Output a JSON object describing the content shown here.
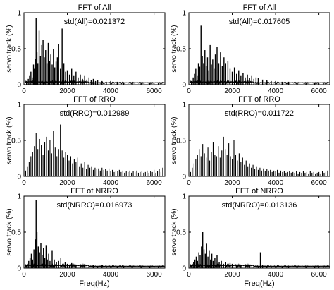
{
  "chart_data": [
    {
      "type": "bar",
      "panel": "top-left",
      "title": "FFT of All",
      "annotation": "std(All)=0.021372",
      "xlabel": "",
      "ylabel": "servo track (%)",
      "xlim": [
        0,
        6500
      ],
      "ylim": [
        0,
        1
      ],
      "xticks": [
        0,
        2000,
        4000,
        6000
      ],
      "yticks": [
        0,
        0.5,
        1
      ],
      "style": "dense",
      "series": [
        {
          "x": [
            120,
            200,
            260,
            320,
            380,
            440,
            480,
            520,
            560,
            600,
            640,
            700,
            760,
            820,
            880,
            940,
            1000,
            1060,
            1120,
            1180,
            1240,
            1300,
            1360,
            1420,
            1480,
            1540,
            1600,
            1680,
            1760,
            1840,
            1920,
            2000,
            2100,
            2200,
            2300,
            2400,
            2500,
            2600,
            2700,
            2800,
            2900,
            3000,
            3100,
            3200,
            3300,
            3400,
            3600,
            3800,
            4000,
            4300,
            4600,
            5000,
            5400,
            5800,
            6200
          ],
          "y": [
            0.05,
            0.08,
            0.12,
            0.18,
            0.1,
            0.28,
            0.22,
            0.36,
            0.93,
            0.45,
            0.3,
            0.75,
            0.4,
            0.55,
            0.62,
            0.38,
            0.48,
            0.3,
            0.58,
            0.33,
            0.42,
            0.28,
            0.5,
            0.24,
            0.32,
            0.38,
            0.56,
            0.22,
            0.78,
            0.3,
            0.18,
            0.2,
            0.14,
            0.22,
            0.12,
            0.18,
            0.1,
            0.14,
            0.08,
            0.12,
            0.07,
            0.1,
            0.06,
            0.08,
            0.05,
            0.06,
            0.05,
            0.04,
            0.05,
            0.04,
            0.03,
            0.04,
            0.03,
            0.03,
            0.02
          ]
        }
      ]
    },
    {
      "type": "bar",
      "panel": "top-right",
      "title": "FFT of All",
      "annotation": "std(All)=0.017605",
      "xlabel": "",
      "ylabel": "servo track (%)",
      "xlim": [
        0,
        6500
      ],
      "ylim": [
        0,
        1
      ],
      "xticks": [
        0,
        2000,
        4000,
        6000
      ],
      "yticks": [
        0,
        0.5,
        1
      ],
      "style": "dense",
      "series": [
        {
          "x": [
            120,
            200,
            260,
            320,
            380,
            440,
            500,
            560,
            620,
            680,
            740,
            800,
            860,
            920,
            980,
            1040,
            1100,
            1160,
            1220,
            1300,
            1380,
            1460,
            1540,
            1620,
            1700,
            1800,
            1900,
            2000,
            2100,
            2200,
            2300,
            2400,
            2500,
            2600,
            2700,
            2800,
            2900,
            3000,
            3100,
            3200,
            3400,
            3600,
            3800,
            4000,
            4300,
            4600,
            5000,
            5400,
            5800,
            6200
          ],
          "y": [
            0.05,
            0.1,
            0.15,
            0.22,
            0.12,
            0.3,
            0.25,
            0.82,
            0.4,
            0.3,
            0.48,
            0.26,
            0.38,
            0.2,
            0.55,
            0.28,
            0.35,
            0.22,
            0.42,
            0.52,
            0.3,
            0.45,
            0.26,
            0.38,
            0.3,
            0.33,
            0.22,
            0.18,
            0.24,
            0.15,
            0.2,
            0.12,
            0.16,
            0.1,
            0.14,
            0.09,
            0.12,
            0.08,
            0.1,
            0.09,
            0.07,
            0.06,
            0.05,
            0.05,
            0.04,
            0.04,
            0.03,
            0.03,
            0.03,
            0.02
          ]
        }
      ]
    },
    {
      "type": "bar",
      "panel": "middle-left",
      "title": "FFT of RRO",
      "annotation": "std(RRO)=0.012989",
      "xlabel": "",
      "ylabel": "servo track (%)",
      "xlim": [
        0,
        6500
      ],
      "ylim": [
        0,
        1
      ],
      "xticks": [
        0,
        2000,
        4000,
        6000
      ],
      "yticks": [
        0,
        0.5,
        1
      ],
      "style": "lines",
      "series": [
        {
          "x": [
            80,
            160,
            240,
            320,
            400,
            480,
            560,
            640,
            720,
            800,
            880,
            960,
            1040,
            1120,
            1200,
            1280,
            1360,
            1440,
            1520,
            1600,
            1680,
            1760,
            1840,
            1920,
            2000,
            2080,
            2160,
            2240,
            2320,
            2400,
            2480,
            2560,
            2640,
            2720,
            2800,
            2880,
            2960,
            3040,
            3120,
            3200,
            3280,
            3360,
            3440,
            3520,
            3600,
            3680,
            3760,
            3840,
            3920,
            4000,
            4080,
            4160,
            4240,
            4320,
            4400,
            4480,
            4560,
            4640,
            4720,
            4800,
            4880,
            4960,
            5040,
            5120,
            5200,
            5280,
            5360,
            5440,
            5520,
            5600,
            5680,
            5760,
            5840,
            5920,
            6000,
            6080,
            6160,
            6240,
            6320,
            6400
          ],
          "y": [
            0.08,
            0.14,
            0.2,
            0.28,
            0.34,
            0.42,
            0.6,
            0.38,
            0.52,
            0.44,
            0.3,
            0.48,
            0.55,
            0.36,
            0.5,
            0.32,
            0.63,
            0.4,
            0.28,
            0.38,
            0.72,
            0.36,
            0.26,
            0.34,
            0.3,
            0.22,
            0.28,
            0.18,
            0.24,
            0.2,
            0.26,
            0.14,
            0.18,
            0.12,
            0.2,
            0.1,
            0.16,
            0.12,
            0.14,
            0.09,
            0.12,
            0.1,
            0.11,
            0.08,
            0.12,
            0.09,
            0.1,
            0.08,
            0.11,
            0.07,
            0.09,
            0.06,
            0.08,
            0.07,
            0.09,
            0.06,
            0.08,
            0.05,
            0.07,
            0.06,
            0.08,
            0.05,
            0.07,
            0.06,
            0.08,
            0.05,
            0.06,
            0.07,
            0.05,
            0.06,
            0.08,
            0.05,
            0.07,
            0.06,
            0.09,
            0.05,
            0.07,
            0.1,
            0.06,
            0.12
          ]
        }
      ]
    },
    {
      "type": "bar",
      "panel": "middle-right",
      "title": "FFT of RRO",
      "annotation": "std(RRO)=0.011722",
      "xlabel": "",
      "ylabel": "servo track (%)",
      "xlim": [
        0,
        6500
      ],
      "ylim": [
        0,
        1
      ],
      "xticks": [
        0,
        2000,
        4000,
        6000
      ],
      "yticks": [
        0,
        0.5,
        1
      ],
      "style": "lines",
      "series": [
        {
          "x": [
            80,
            160,
            240,
            320,
            400,
            480,
            560,
            640,
            720,
            800,
            880,
            960,
            1040,
            1120,
            1200,
            1280,
            1360,
            1440,
            1520,
            1600,
            1680,
            1760,
            1840,
            1920,
            2000,
            2080,
            2160,
            2240,
            2320,
            2400,
            2480,
            2560,
            2640,
            2720,
            2800,
            2880,
            2960,
            3040,
            3120,
            3200,
            3280,
            3360,
            3440,
            3520,
            3600,
            3680,
            3760,
            3840,
            3920,
            4000,
            4080,
            4160,
            4240,
            4320,
            4400,
            4480,
            4560,
            4640,
            4720,
            4800,
            4880,
            4960,
            5040,
            5120,
            5200,
            5280,
            5360,
            5440,
            5520,
            5600,
            5680,
            5760,
            5840,
            5920,
            6000,
            6080,
            6160,
            6240,
            6320,
            6400
          ],
          "y": [
            0.06,
            0.12,
            0.18,
            0.24,
            0.3,
            0.38,
            0.28,
            0.45,
            0.32,
            0.26,
            0.4,
            0.22,
            0.34,
            0.48,
            0.3,
            0.28,
            0.42,
            0.26,
            0.36,
            0.55,
            0.38,
            0.3,
            0.46,
            0.28,
            0.24,
            0.5,
            0.3,
            0.22,
            0.32,
            0.2,
            0.26,
            0.16,
            0.22,
            0.14,
            0.18,
            0.12,
            0.16,
            0.1,
            0.14,
            0.09,
            0.12,
            0.08,
            0.11,
            0.07,
            0.1,
            0.08,
            0.09,
            0.06,
            0.08,
            0.07,
            0.09,
            0.05,
            0.08,
            0.06,
            0.07,
            0.05,
            0.06,
            0.07,
            0.05,
            0.06,
            0.05,
            0.07,
            0.04,
            0.06,
            0.05,
            0.07,
            0.05,
            0.06,
            0.04,
            0.07,
            0.05,
            0.06,
            0.04,
            0.05,
            0.06,
            0.04,
            0.07,
            0.05,
            0.06,
            0.08
          ]
        }
      ]
    },
    {
      "type": "bar",
      "panel": "bottom-left",
      "title": "FFT of NRRO",
      "annotation": "std(NRRO)=0.016973",
      "xlabel": "Freq(Hz)",
      "ylabel": "servo track (%)",
      "xlim": [
        0,
        6500
      ],
      "ylim": [
        0,
        1
      ],
      "xticks": [
        0,
        2000,
        4000,
        6000
      ],
      "yticks": [
        0,
        0.5,
        1
      ],
      "style": "dense",
      "series": [
        {
          "x": [
            100,
            160,
            220,
            280,
            340,
            400,
            460,
            520,
            560,
            600,
            660,
            720,
            780,
            840,
            900,
            960,
            1020,
            1080,
            1140,
            1200,
            1300,
            1400,
            1500,
            1600,
            1700,
            1800,
            1900,
            2000,
            2100,
            2200,
            2400,
            2600,
            2800,
            3000,
            3200,
            3400,
            3600,
            3800,
            4000,
            4300,
            4600,
            5000,
            5400,
            5800,
            6200
          ],
          "y": [
            0.04,
            0.06,
            0.1,
            0.14,
            0.2,
            0.12,
            0.26,
            0.4,
            0.95,
            0.5,
            0.3,
            0.22,
            0.35,
            0.18,
            0.28,
            0.14,
            0.32,
            0.12,
            0.2,
            0.1,
            0.24,
            0.12,
            0.08,
            0.1,
            0.14,
            0.06,
            0.08,
            0.06,
            0.05,
            0.07,
            0.05,
            0.04,
            0.05,
            0.04,
            0.04,
            0.03,
            0.04,
            0.03,
            0.03,
            0.03,
            0.02,
            0.03,
            0.02,
            0.02,
            0.02
          ]
        }
      ]
    },
    {
      "type": "bar",
      "panel": "bottom-right",
      "title": "FFT of NRRO",
      "annotation": "std(NRRO)=0.013136",
      "xlabel": "Freq(Hz)",
      "ylabel": "servo track (%)",
      "xlim": [
        0,
        6500
      ],
      "ylim": [
        0,
        1
      ],
      "xticks": [
        0,
        2000,
        4000,
        6000
      ],
      "yticks": [
        0,
        0.5,
        1
      ],
      "style": "dense",
      "series": [
        {
          "x": [
            100,
            160,
            220,
            280,
            340,
            400,
            460,
            520,
            580,
            640,
            700,
            760,
            820,
            880,
            940,
            1000,
            1060,
            1120,
            1200,
            1300,
            1400,
            1500,
            1600,
            1700,
            1800,
            1900,
            2000,
            2200,
            2400,
            2600,
            2800,
            3000,
            3200,
            3300,
            3400,
            3600,
            3800,
            4000,
            4300,
            4600,
            5000,
            5400,
            5800,
            6200
          ],
          "y": [
            0.04,
            0.06,
            0.08,
            0.12,
            0.16,
            0.1,
            0.22,
            0.18,
            0.3,
            0.5,
            0.26,
            0.2,
            0.34,
            0.16,
            0.24,
            0.12,
            0.2,
            0.1,
            0.14,
            0.18,
            0.08,
            0.1,
            0.06,
            0.08,
            0.05,
            0.07,
            0.06,
            0.05,
            0.04,
            0.05,
            0.04,
            0.04,
            0.03,
            0.22,
            0.04,
            0.03,
            0.03,
            0.03,
            0.02,
            0.03,
            0.02,
            0.02,
            0.02,
            0.02
          ]
        }
      ]
    }
  ]
}
